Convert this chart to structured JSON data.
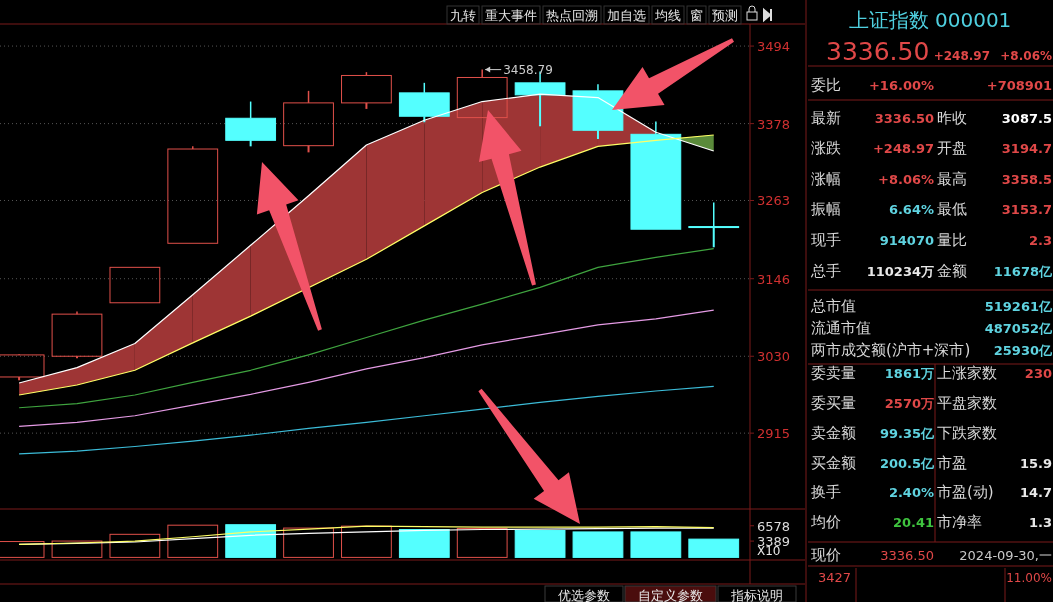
{
  "chart_data": [
    {
      "type": "other",
      "annotations": [
        "九转",
        "重大事件",
        "热点回溯",
        "加自选",
        "均线",
        "窗",
        "预测"
      ]
    },
    {
      "type": "candlestick",
      "categories": [
        null,
        null,
        null,
        null,
        null,
        null,
        null,
        null,
        null,
        null,
        null,
        null,
        null
      ],
      "ohlc": [
        [
          2999,
          3033,
          2994,
          3032
        ],
        [
          3030,
          3097,
          3027,
          3093
        ],
        [
          3110,
          3163,
          3110,
          3163
        ],
        [
          3199,
          3344,
          3199,
          3340
        ],
        [
          3386,
          3411,
          3344,
          3353
        ],
        [
          3345,
          3427,
          3335,
          3409
        ],
        [
          3409,
          3455,
          3400,
          3450
        ],
        [
          3424,
          3439,
          3380,
          3389
        ],
        [
          3387,
          3458.79,
          3387,
          3447
        ],
        [
          3439,
          3456,
          3374,
          3421
        ],
        [
          3427,
          3437,
          3355,
          3368
        ],
        [
          3362,
          3381,
          3220,
          3220
        ],
        [
          3224,
          3260,
          3193,
          3224
        ]
      ],
      "colors": [
        "#e0504a",
        "#e0504a",
        "#e0504a",
        "#e0504a",
        "#54ffff",
        "#e0504a",
        "#e0504a",
        "#54ffff",
        "#e0504a",
        "#54ffff",
        "#54ffff",
        "#54ffff",
        "#54ffff"
      ],
      "series": [
        {
          "type": "line",
          "color": "#ffffff",
          "values": [
            2990,
            3013,
            3049,
            3122,
            3196,
            3270,
            3346,
            3383,
            3411,
            3422,
            3417,
            3365,
            3337
          ],
          "lower": [
            2972,
            2987,
            3009,
            3050,
            3090,
            null,
            3175,
            3225,
            3275,
            3313,
            3344,
            3353,
            null
          ],
          "upper": [
            2990,
            3013,
            3049,
            3122,
            3196,
            null,
            3346,
            3383,
            3411,
            3422,
            3417,
            3365,
            null
          ]
        },
        {
          "type": "line",
          "color": "#ffff66",
          "values": [
            2972,
            2987,
            3009,
            3050,
            3090,
            null,
            3175,
            3225,
            3275,
            3313,
            3344,
            3353,
            3361
          ]
        },
        {
          "type": "line",
          "color": "#3fa43f",
          "values": [
            2953,
            2959,
            2972,
            2991,
            3009,
            3032,
            3058,
            3084,
            3108,
            3133,
            3163,
            3178,
            3191
          ]
        },
        {
          "type": "line",
          "color": "#e59be5",
          "values": [
            2925,
            2931,
            2941,
            2957,
            2973,
            2991,
            3011,
            3028,
            3047,
            3062,
            3077,
            3086,
            3099
          ]
        },
        {
          "type": "line",
          "color": "#3cbcd8",
          "values": [
            2884,
            2888,
            2895,
            2903,
            2912,
            2922,
            2931,
            2941,
            2951,
            2961,
            2970,
            2978,
            2985
          ]
        }
      ],
      "ylim": [
        2803,
        3530
      ],
      "yticks": [
        2915,
        3030,
        3146,
        3263,
        3378,
        3494
      ],
      "grid": "y",
      "tick_labels": "y",
      "annotations": [
        "3458.79"
      ]
    },
    {
      "type": "bar",
      "categories": [
        null,
        null,
        null,
        null,
        null,
        null,
        null,
        null,
        null,
        null,
        null,
        null,
        null
      ],
      "series": [
        {
          "type": "bar",
          "values": [
            3300,
            3400,
            4800,
            6700,
            6800,
            6100,
            6500,
            5800,
            6000,
            5600,
            5300,
            5300,
            3800
          ],
          "colors": [
            "#e0504a",
            "#e0504a",
            "#e0504a",
            "#e0504a",
            "#54ffff",
            "#e0504a",
            "#e0504a",
            "#54ffff",
            "#e0504a",
            "#54ffff",
            "#54ffff",
            "#54ffff",
            "#54ffff"
          ]
        },
        {
          "type": "line",
          "color": "#ffffff",
          "values": [
            2700,
            2900,
            3200,
            3900,
            4600,
            5000,
            5300,
            5600,
            5800,
            5900,
            6000,
            6100,
            6100
          ]
        },
        {
          "type": "line",
          "color": "#ffff66",
          "values": [
            2700,
            3000,
            3400,
            4300,
            5300,
            5900,
            6500,
            6400,
            6300,
            6300,
            6300,
            6400,
            6200
          ]
        }
      ],
      "ylim": [
        0,
        9650
      ],
      "yticks": [
        3389,
        6578
      ],
      "ylabel": "X10",
      "tick_labels": "y",
      "annotations": [
        "优选参数",
        "自定义参数",
        "指标说明"
      ]
    },
    {
      "type": "other",
      "title": "上证指数 000001",
      "annotations": [
        "3336.50",
        "+248.97",
        "+8.06%",
        "委比",
        "+16.00%",
        "+708901",
        "最新",
        "3336.50",
        "昨收",
        "3087.5",
        "涨跌",
        "+248.97",
        "开盘",
        "3194.7",
        "涨幅",
        "+8.06%",
        "最高",
        "3358.5",
        "振幅",
        "6.64%",
        "最低",
        "3153.7",
        "现手",
        "914070",
        "量比",
        "2.3",
        "总手",
        "110234万",
        "金额",
        "11678亿",
        "总市值",
        "519261亿",
        "流通市值",
        "487052亿",
        "两市成交额(沪市+深市)",
        "25930亿",
        "委卖量",
        "1861万",
        "上涨家数",
        "230",
        "委买量",
        "2570万",
        "平盘家数",
        "卖金额",
        "99.35亿",
        "下跌家数",
        "买金额",
        "200.5亿",
        "市盈",
        "15.9",
        "换手",
        "2.40%",
        "市盈(动)",
        "14.7",
        "均价",
        "20.41",
        "市净率",
        "1.3",
        "现价",
        "3336.50",
        "2024-09-30,一",
        "3427",
        "11.00%"
      ],
      "colors": [
        "#e04848",
        "#e04848",
        "#e04848",
        "#d8d8d8",
        "#e04848",
        "#e04848",
        "#d8d8d8",
        "#e04848",
        "#d8d8d8",
        "#ffffff",
        "#d8d8d8",
        "#e04848",
        "#d8d8d8",
        "#e04848",
        "#d8d8d8",
        "#e04848",
        "#d8d8d8",
        "#e04848",
        "#d8d8d8",
        "#5fd3e0",
        "#d8d8d8",
        "#e04848",
        "#d8d8d8",
        "#5fd3e0",
        "#d8d8d8",
        "#e04848",
        "#d8d8d8",
        "#e8e8e8",
        "#d8d8d8",
        "#5fd3e0",
        "#d8d8d8",
        "#5fd3e0",
        "#d8d8d8",
        "#5fd3e0",
        "#d8d8d8",
        "#5fd3e0",
        "#d8d8d8",
        "#5fd3e0",
        "#d8d8d8",
        "#e04848",
        "#d8d8d8",
        "#e04848",
        "#d8d8d8",
        "#d8d8d8",
        "#5fd3e0",
        "#d8d8d8",
        "#d8d8d8",
        "#5fd3e0",
        "#d8d8d8",
        "#e8e8e8",
        "#d8d8d8",
        "#5fd3e0",
        "#d8d8d8",
        "#e8e8e8",
        "#d8d8d8",
        "#3fc43f",
        "#d8d8d8",
        "#e8e8e8",
        "#d8d8d8",
        "#e04848",
        "#c8c8c8",
        "#e04848",
        "#e04848"
      ]
    }
  ]
}
